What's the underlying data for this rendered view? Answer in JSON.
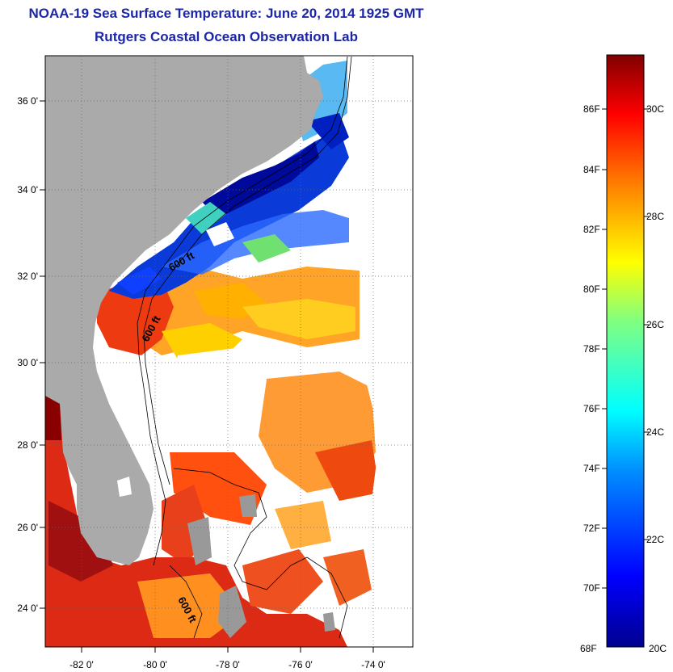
{
  "title": "NOAA-19 Sea Surface Temperature:  June 20, 2014 1925 GMT",
  "subtitle": "Rutgers Coastal Ocean Observation Lab",
  "map": {
    "lon_ticks": [
      "-82 0'",
      "-80 0'",
      "-78 0'",
      "-76 0'",
      "-74 0'"
    ],
    "lat_ticks": [
      "36 0'",
      "34 0'",
      "32 0'",
      "30 0'",
      "28 0'",
      "26 0'",
      "24 0'"
    ],
    "contour_labels": [
      "600 ft",
      "600 ft",
      "600 ft"
    ]
  },
  "colorbar": {
    "fahrenheit_labels": [
      "86F",
      "84F",
      "82F",
      "80F",
      "78F",
      "76F",
      "74F",
      "72F",
      "70F",
      "68F"
    ],
    "celsius_labels": [
      "30C",
      "28C",
      "26C",
      "24C",
      "22C",
      "20C"
    ],
    "colors": [
      "#00008f",
      "#0000ff",
      "#00b0ff",
      "#00ffff",
      "#80ff80",
      "#ffff00",
      "#ff8000",
      "#ff0000",
      "#800000"
    ]
  },
  "colors": {
    "title": "#1c27a8",
    "land": "#aaaaaa"
  }
}
